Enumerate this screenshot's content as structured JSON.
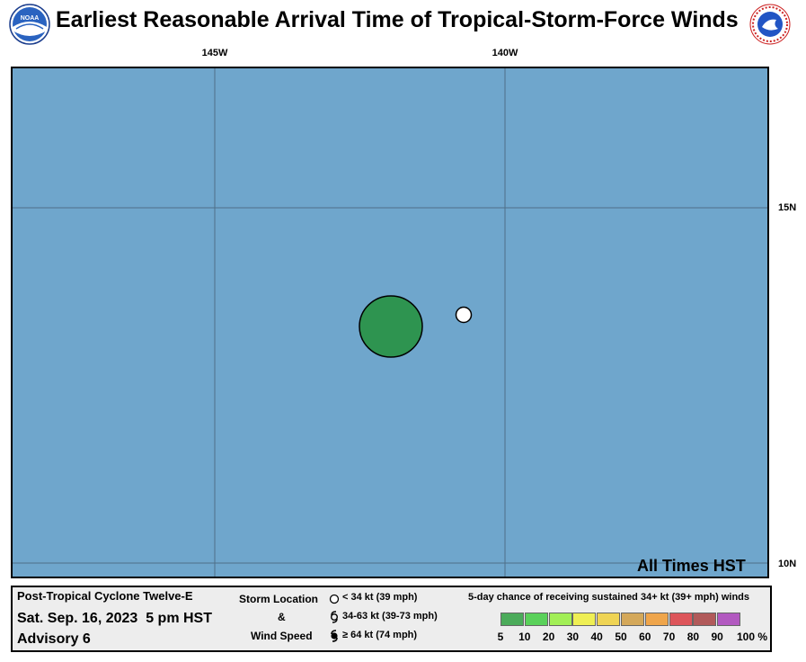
{
  "header": {
    "title": "Earliest Reasonable Arrival Time of Tropical-Storm-Force Winds",
    "left_logo_icon": "noaa-logo-icon",
    "right_logo_icon": "nws-logo-icon",
    "right_logo_text": "NATIONAL WEATHER SERVICE"
  },
  "map": {
    "ocean_color": "#6fa6cc",
    "longitude_labels": [
      "145W",
      "140W"
    ],
    "latitude_labels": [
      "15N",
      "10N"
    ],
    "storm_location_marker": "storm-center-icon",
    "arrival_area_color": "#2e9450",
    "footnote": "All Times HST"
  },
  "info": {
    "storm_name": "Post-Tropical Cyclone Twelve-E",
    "date_time": "Sat. Sep. 16, 2023  5 pm HST",
    "advisory": "Advisory 6"
  },
  "storm_legend": {
    "title_line1": "Storm Location",
    "title_line2": "&",
    "title_line3": "Wind Speed",
    "items": [
      {
        "icon": "open-circle-icon",
        "label": "< 34 kt (39 mph)"
      },
      {
        "icon": "tropical-storm-icon",
        "label": "34-63 kt (39-73 mph)"
      },
      {
        "icon": "hurricane-icon",
        "label": "≥ 64 kt (74 mph)"
      }
    ]
  },
  "probability_legend": {
    "title": "5-day chance of receiving sustained 34+ kt (39+ mph) winds",
    "labels": [
      "5",
      "10",
      "20",
      "30",
      "40",
      "50",
      "60",
      "70",
      "80",
      "90",
      "100 %"
    ],
    "colors": [
      "#4bab5a",
      "#5ad15a",
      "#a2ef56",
      "#efef54",
      "#efd454",
      "#d4a85a",
      "#efa54b",
      "#dd555a",
      "#b15a5a",
      "#b259c0"
    ]
  }
}
